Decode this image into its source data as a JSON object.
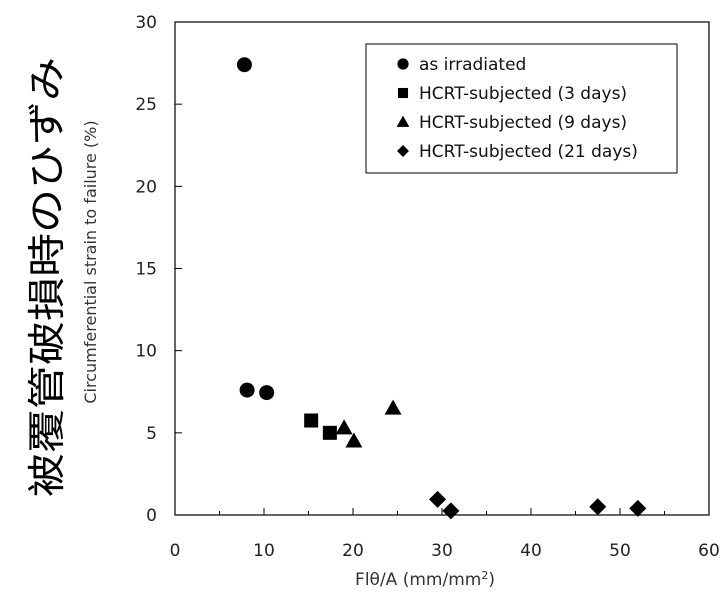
{
  "chart_data": {
    "type": "scatter",
    "jp_label": "被覆管破損時のひずみ",
    "ylabel": "Circumferential strain to failure (%)",
    "xlabel_main": "Flθ/A (mm/mm",
    "xlabel_sup": "2",
    "xlabel_close": ")",
    "xlim": [
      0,
      60
    ],
    "ylim": [
      0,
      30
    ],
    "xticks": [
      "0",
      "10",
      "20",
      "30",
      "40",
      "50",
      "60"
    ],
    "yticks": [
      "0",
      "5",
      "10",
      "15",
      "20",
      "25",
      "30"
    ],
    "legend_position": "top-right",
    "series": [
      {
        "name": "as irradiated",
        "marker": "circle",
        "points": [
          [
            7.8,
            27.4
          ],
          [
            8.1,
            7.6
          ],
          [
            10.3,
            7.45
          ]
        ]
      },
      {
        "name": "HCRT-subjected (3 days)",
        "marker": "square",
        "points": [
          [
            15.3,
            5.75
          ],
          [
            17.4,
            5.0
          ]
        ]
      },
      {
        "name": "HCRT-subjected (9 days)",
        "marker": "triangle",
        "points": [
          [
            19.0,
            5.3
          ],
          [
            20.1,
            4.5
          ],
          [
            24.5,
            6.5
          ]
        ]
      },
      {
        "name": "HCRT-subjected (21 days)",
        "marker": "diamond",
        "points": [
          [
            29.5,
            0.95
          ],
          [
            31.0,
            0.25
          ],
          [
            47.5,
            0.5
          ],
          [
            52.0,
            0.4
          ]
        ]
      }
    ]
  }
}
